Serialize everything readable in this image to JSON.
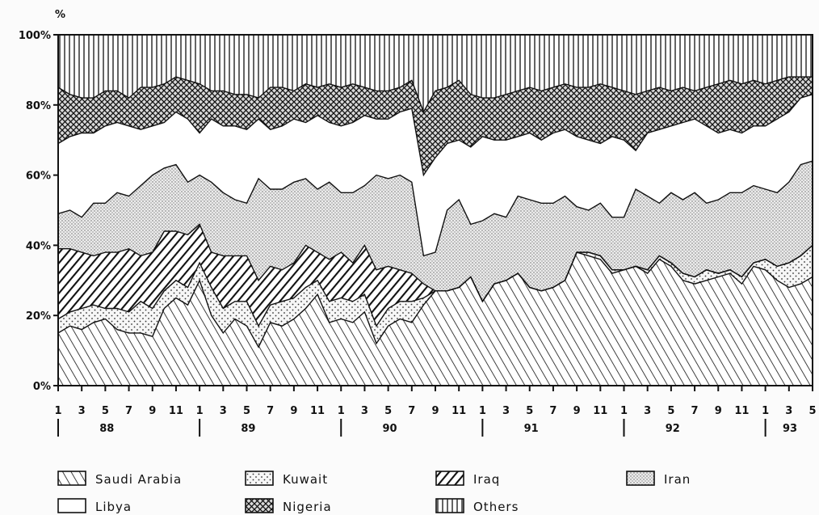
{
  "chart_data": {
    "type": "area",
    "stacked": true,
    "ylabel": "%",
    "ylim": [
      0,
      100
    ],
    "yticks": [
      "0%",
      "20%",
      "40%",
      "60%",
      "80%",
      "100%"
    ],
    "x_tick_labels": [
      "1",
      "3",
      "5",
      "7",
      "9",
      "11",
      "1",
      "3",
      "5",
      "7",
      "9",
      "11",
      "1",
      "3",
      "5",
      "7",
      "9",
      "11",
      "1",
      "3",
      "5",
      "7",
      "9",
      "11",
      "1",
      "3",
      "5",
      "7",
      "9",
      "11",
      "1",
      "3",
      "5"
    ],
    "year_labels": [
      "88",
      "89",
      "90",
      "91",
      "92",
      "93"
    ],
    "x_note": "monthly data, January 1988 to May 1993 (cumulative percentage boundaries between layers)",
    "series": [
      {
        "name": "Saudi Arabia",
        "pattern": "diag-back",
        "values": [
          15,
          17,
          16,
          18,
          19,
          16,
          15,
          15,
          14,
          22,
          25,
          23,
          30,
          20,
          15,
          19,
          17,
          11,
          18,
          17,
          19,
          22,
          26,
          18,
          19,
          18,
          21,
          12,
          17,
          19,
          18,
          23,
          27,
          27,
          28,
          31,
          24,
          29,
          30,
          32,
          28,
          27,
          28,
          30,
          38,
          37,
          36,
          32,
          33,
          34,
          32,
          36,
          34,
          30,
          29,
          30,
          31,
          32,
          29,
          34,
          33,
          30,
          28,
          29,
          31
        ]
      },
      {
        "name": "Kuwait",
        "pattern": "dots-sparse",
        "values": [
          19,
          21,
          22,
          23,
          22,
          22,
          21,
          24,
          22,
          27,
          30,
          28,
          35,
          28,
          22,
          24,
          24,
          17,
          23,
          24,
          25,
          28,
          30,
          24,
          25,
          24,
          26,
          17,
          22,
          24,
          24,
          25,
          27,
          27,
          28,
          31,
          24,
          29,
          30,
          32,
          28,
          27,
          28,
          30,
          38,
          38,
          37,
          33,
          33,
          34,
          33,
          37,
          35,
          32,
          31,
          33,
          32,
          33,
          31,
          35,
          36,
          34,
          35,
          37,
          40
        ]
      },
      {
        "name": "Iraq",
        "pattern": "diag-fwd-thick",
        "values": [
          39,
          39,
          38,
          37,
          38,
          38,
          39,
          37,
          38,
          44,
          44,
          43,
          46,
          38,
          37,
          37,
          37,
          30,
          34,
          33,
          35,
          40,
          38,
          36,
          38,
          35,
          40,
          33,
          34,
          33,
          32,
          29,
          27,
          27,
          28,
          31,
          24,
          29,
          30,
          32,
          28,
          27,
          28,
          30,
          38,
          38,
          37,
          33,
          33,
          34,
          33,
          37,
          35,
          32,
          31,
          33,
          32,
          33,
          31,
          35,
          36,
          34,
          35,
          37,
          40
        ]
      },
      {
        "name": "Iran",
        "pattern": "dots-dense",
        "values": [
          49,
          50,
          48,
          52,
          52,
          55,
          54,
          57,
          60,
          62,
          63,
          58,
          60,
          58,
          55,
          53,
          52,
          59,
          56,
          56,
          58,
          59,
          56,
          58,
          55,
          55,
          57,
          60,
          59,
          60,
          58,
          37,
          38,
          50,
          53,
          46,
          47,
          49,
          48,
          54,
          53,
          52,
          52,
          54,
          51,
          50,
          52,
          48,
          48,
          56,
          54,
          52,
          55,
          53,
          55,
          52,
          53,
          55,
          55,
          57,
          56,
          55,
          58,
          63,
          64
        ]
      },
      {
        "name": "Libya",
        "pattern": "none",
        "values": [
          69,
          71,
          72,
          72,
          74,
          75,
          74,
          73,
          74,
          75,
          78,
          76,
          72,
          76,
          74,
          74,
          73,
          76,
          73,
          74,
          76,
          75,
          77,
          75,
          74,
          75,
          77,
          76,
          76,
          78,
          79,
          60,
          65,
          69,
          70,
          68,
          71,
          70,
          70,
          71,
          72,
          70,
          72,
          73,
          71,
          70,
          69,
          71,
          70,
          67,
          72,
          73,
          74,
          75,
          76,
          74,
          72,
          73,
          72,
          74,
          74,
          76,
          78,
          82,
          83
        ]
      },
      {
        "name": "Nigeria",
        "pattern": "crosshatch",
        "values": [
          85,
          83,
          82,
          82,
          84,
          84,
          82,
          85,
          85,
          86,
          88,
          87,
          86,
          84,
          84,
          83,
          83,
          82,
          85,
          85,
          84,
          86,
          85,
          86,
          85,
          86,
          85,
          84,
          84,
          85,
          87,
          78,
          84,
          85,
          87,
          83,
          82,
          82,
          83,
          84,
          85,
          84,
          85,
          86,
          85,
          85,
          86,
          85,
          84,
          83,
          84,
          85,
          84,
          85,
          84,
          85,
          86,
          87,
          86,
          87,
          86,
          87,
          88,
          88,
          88
        ]
      },
      {
        "name": "Others",
        "pattern": "vertical",
        "values": [
          100,
          100,
          100,
          100,
          100,
          100,
          100,
          100,
          100,
          100,
          100,
          100,
          100,
          100,
          100,
          100,
          100,
          100,
          100,
          100,
          100,
          100,
          100,
          100,
          100,
          100,
          100,
          100,
          100,
          100,
          100,
          100,
          100,
          100,
          100,
          100,
          100,
          100,
          100,
          100,
          100,
          100,
          100,
          100,
          100,
          100,
          100,
          100,
          100,
          100,
          100,
          100,
          100,
          100,
          100,
          100,
          100,
          100,
          100,
          100,
          100,
          100,
          100,
          100,
          100
        ]
      }
    ],
    "legend_rows": [
      [
        "Saudi Arabia",
        "Kuwait",
        "Iraq",
        "Iran"
      ],
      [
        "Libya",
        "Nigeria",
        "Others"
      ]
    ]
  }
}
